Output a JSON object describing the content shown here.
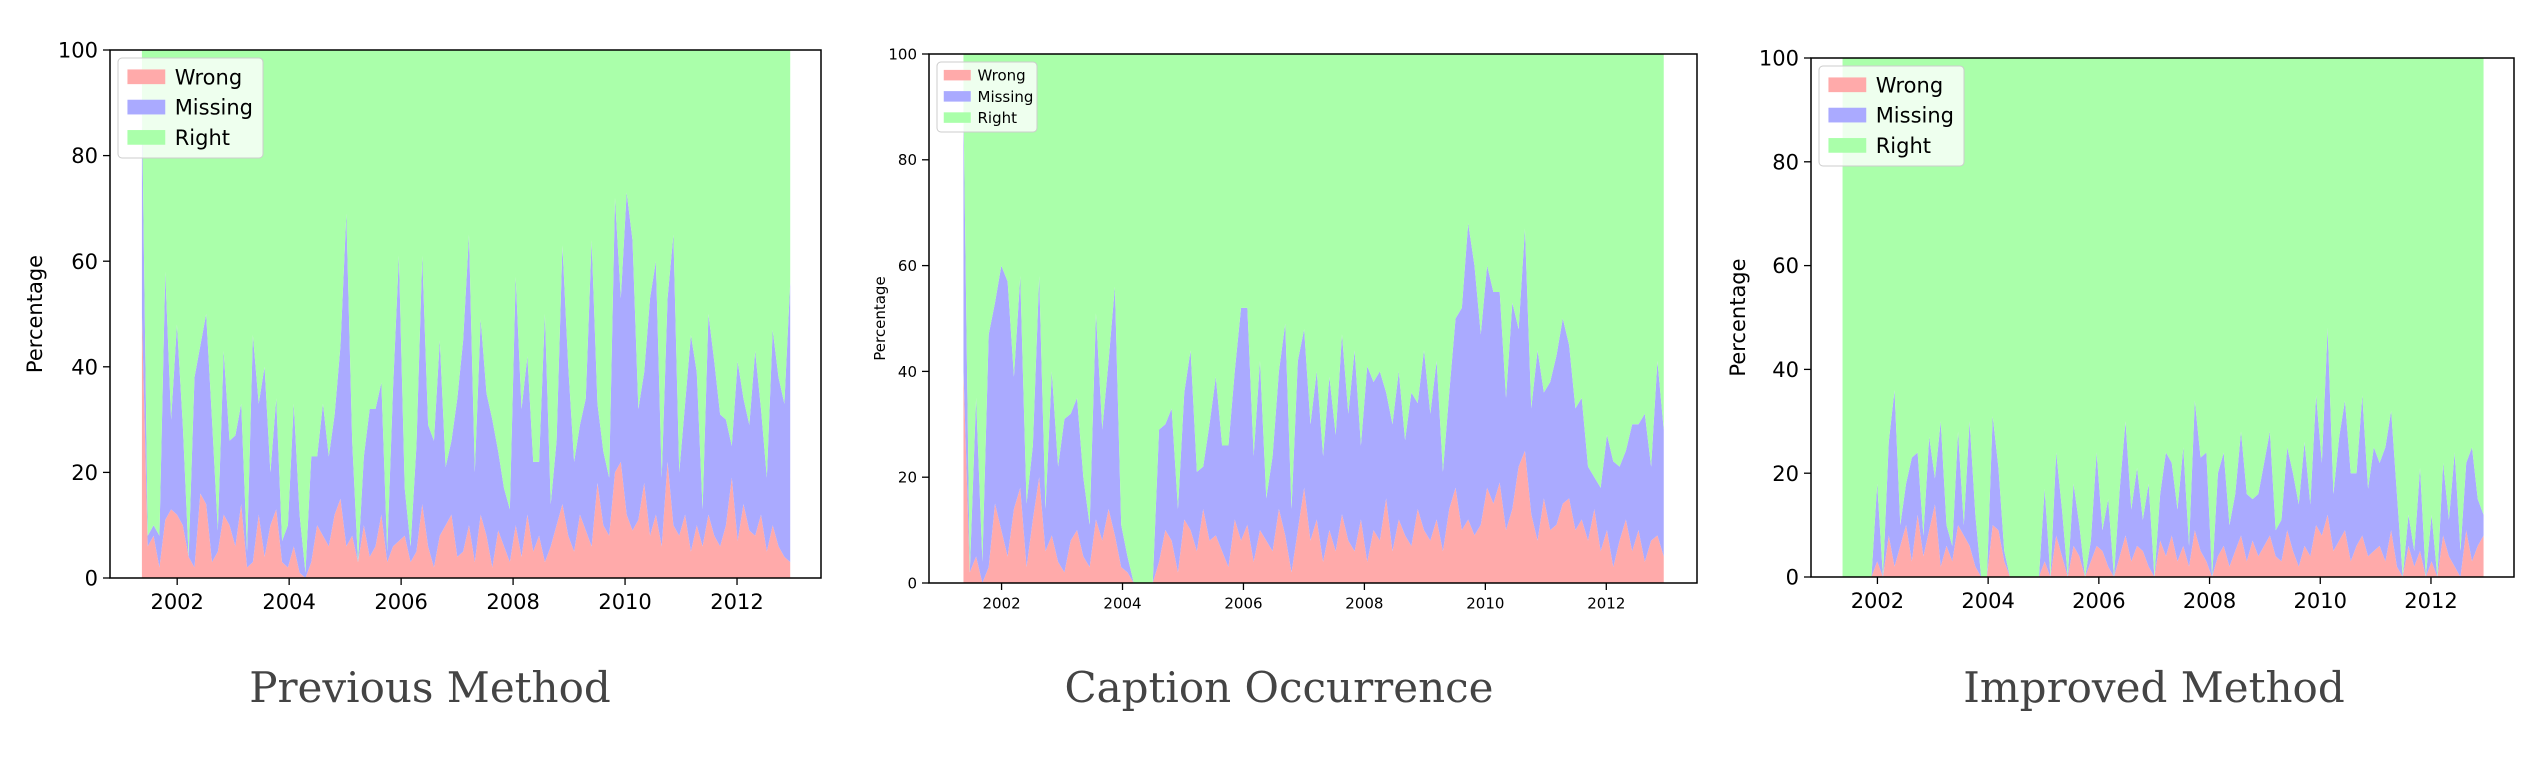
{
  "colors": {
    "wrong": "#ffaaaa",
    "missing": "#aaaaff",
    "right": "#aaffaa"
  },
  "chart_data": [
    {
      "type": "area",
      "stacked": true,
      "caption": "Previous Method",
      "ylabel": "Percentage",
      "xlim": [
        2000.8,
        2013.5
      ],
      "ylim": [
        0,
        100
      ],
      "xticks": [
        2002,
        2004,
        2006,
        2008,
        2010,
        2012
      ],
      "yticks": [
        0,
        20,
        40,
        60,
        80,
        100
      ],
      "legend": {
        "placement": "top-left",
        "entries": [
          "Wrong",
          "Missing",
          "Right"
        ]
      },
      "x_range": [
        2001.37,
        2012.95
      ],
      "series": [
        {
          "name": "Wrong",
          "key": "wrong",
          "values": [
            50,
            6,
            8,
            2,
            11,
            13,
            12,
            10,
            4,
            2,
            16,
            14,
            3,
            5,
            12,
            10,
            6,
            14,
            2,
            3,
            12,
            4,
            10,
            13,
            3,
            2,
            6,
            1,
            0,
            3,
            10,
            8,
            6,
            12,
            15,
            6,
            8,
            3,
            10,
            4,
            6,
            12,
            3,
            6,
            7,
            8,
            3,
            5,
            14,
            6,
            2,
            8,
            10,
            12,
            4,
            5,
            10,
            3,
            12,
            8,
            2,
            9,
            6,
            3,
            10,
            4,
            12,
            5,
            8,
            3,
            6,
            10,
            14,
            8,
            5,
            12,
            9,
            6,
            18,
            10,
            8,
            20,
            22,
            12,
            9,
            11,
            18,
            8,
            12,
            6,
            22,
            10,
            8,
            12,
            5,
            10,
            6,
            12,
            8,
            6,
            10,
            19,
            7,
            14,
            9,
            8,
            12,
            5,
            10,
            6,
            4,
            3
          ]
        },
        {
          "name": "Missing",
          "key": "missing",
          "values": [
            40,
            2,
            2,
            6,
            47,
            17,
            36,
            19,
            0,
            36,
            28,
            36,
            27,
            4,
            31,
            16,
            21,
            19,
            3,
            43,
            21,
            36,
            10,
            21,
            4,
            8,
            27,
            11,
            1,
            20,
            13,
            25,
            17,
            19,
            29,
            63,
            18,
            0,
            13,
            28,
            26,
            25,
            2,
            30,
            54,
            9,
            3,
            20,
            47,
            23,
            24,
            37,
            11,
            14,
            30,
            40,
            55,
            17,
            37,
            27,
            28,
            15,
            11,
            10,
            47,
            28,
            30,
            17,
            14,
            47,
            8,
            16,
            49,
            32,
            17,
            17,
            25,
            58,
            15,
            14,
            11,
            52,
            31,
            61,
            55,
            21,
            21,
            45,
            48,
            13,
            31,
            55,
            12,
            21,
            41,
            29,
            7,
            38,
            33,
            25,
            20,
            6,
            34,
            20,
            20,
            35,
            20,
            14,
            37,
            32,
            29,
            53
          ]
        },
        {
          "name": "Right",
          "key": "right",
          "values": [
            10,
            92,
            90,
            92,
            42,
            70,
            52,
            71,
            96,
            62,
            56,
            50,
            70,
            91,
            57,
            74,
            73,
            67,
            95,
            54,
            67,
            60,
            80,
            66,
            93,
            90,
            67,
            88,
            99,
            77,
            77,
            67,
            77,
            69,
            56,
            31,
            74,
            97,
            77,
            68,
            68,
            63,
            95,
            64,
            39,
            83,
            94,
            75,
            39,
            71,
            74,
            55,
            79,
            74,
            66,
            55,
            35,
            80,
            51,
            65,
            70,
            76,
            83,
            87,
            43,
            68,
            58,
            78,
            78,
            50,
            86,
            74,
            37,
            60,
            78,
            71,
            66,
            36,
            67,
            76,
            81,
            28,
            47,
            27,
            36,
            68,
            61,
            47,
            40,
            81,
            47,
            35,
            80,
            67,
            54,
            61,
            87,
            50,
            59,
            69,
            70,
            75,
            59,
            66,
            71,
            57,
            68,
            81,
            53,
            62,
            67,
            44
          ]
        }
      ]
    },
    {
      "type": "area",
      "stacked": true,
      "caption": "Caption Occurrence",
      "ylabel": "Percentage",
      "xlim": [
        2000.8,
        2013.5
      ],
      "ylim": [
        0,
        100
      ],
      "xticks": [
        2002,
        2004,
        2006,
        2008,
        2010,
        2012
      ],
      "yticks": [
        0,
        20,
        40,
        60,
        80,
        100
      ],
      "legend": {
        "placement": "top-left",
        "entries": [
          "Wrong",
          "Missing",
          "Right"
        ]
      },
      "x_range": [
        2001.37,
        2012.95
      ],
      "series": [
        {
          "name": "Wrong",
          "key": "wrong",
          "values": [
            40,
            2,
            5,
            0,
            3,
            15,
            10,
            5,
            14,
            18,
            3,
            12,
            20,
            6,
            9,
            4,
            2,
            8,
            10,
            5,
            3,
            12,
            8,
            14,
            9,
            3,
            2,
            0,
            0,
            0,
            0,
            4,
            10,
            8,
            2,
            12,
            10,
            6,
            14,
            8,
            9,
            6,
            3,
            12,
            8,
            11,
            4,
            10,
            8,
            6,
            14,
            9,
            2,
            10,
            18,
            8,
            12,
            4,
            10,
            6,
            13,
            8,
            6,
            12,
            4,
            10,
            8,
            16,
            6,
            12,
            9,
            7,
            14,
            10,
            8,
            12,
            6,
            14,
            18,
            10,
            12,
            9,
            11,
            18,
            15,
            19,
            10,
            14,
            22,
            25,
            13,
            8,
            16,
            10,
            11,
            15,
            16,
            10,
            12,
            8,
            14,
            6,
            10,
            3,
            8,
            12,
            6,
            10,
            4,
            8,
            9,
            5
          ]
        },
        {
          "name": "Missing",
          "key": "missing",
          "values": [
            50,
            0,
            30,
            4,
            44,
            38,
            50,
            52,
            25,
            40,
            12,
            14,
            38,
            8,
            31,
            18,
            29,
            24,
            25,
            15,
            8,
            39,
            21,
            28,
            47,
            8,
            3,
            0,
            0,
            0,
            0,
            25,
            20,
            25,
            12,
            24,
            34,
            15,
            8,
            22,
            30,
            20,
            23,
            28,
            44,
            41,
            20,
            32,
            8,
            18,
            26,
            40,
            12,
            32,
            30,
            22,
            28,
            20,
            29,
            22,
            34,
            24,
            38,
            14,
            37,
            28,
            32,
            20,
            24,
            28,
            18,
            29,
            20,
            34,
            24,
            30,
            15,
            22,
            32,
            42,
            56,
            51,
            36,
            42,
            40,
            36,
            25,
            39,
            26,
            42,
            20,
            36,
            20,
            28,
            32,
            35,
            29,
            23,
            23,
            14,
            6,
            12,
            18,
            20,
            14,
            13,
            24,
            20,
            28,
            14,
            33,
            24
          ]
        },
        {
          "name": "Right",
          "key": "right",
          "values": [
            10,
            98,
            65,
            96,
            53,
            47,
            40,
            43,
            61,
            42,
            85,
            74,
            42,
            86,
            60,
            78,
            69,
            68,
            65,
            80,
            89,
            49,
            71,
            58,
            44,
            89,
            95,
            100,
            100,
            100,
            100,
            71,
            70,
            67,
            86,
            64,
            56,
            79,
            78,
            70,
            61,
            74,
            74,
            60,
            48,
            48,
            76,
            58,
            84,
            76,
            60,
            51,
            86,
            58,
            52,
            70,
            60,
            76,
            61,
            72,
            53,
            68,
            56,
            74,
            59,
            62,
            60,
            64,
            70,
            60,
            73,
            64,
            66,
            56,
            68,
            58,
            79,
            64,
            50,
            48,
            32,
            40,
            53,
            40,
            45,
            45,
            65,
            47,
            52,
            33,
            67,
            56,
            64,
            62,
            57,
            50,
            55,
            67,
            65,
            78,
            80,
            82,
            72,
            77,
            78,
            75,
            70,
            70,
            68,
            78,
            58,
            71
          ]
        }
      ]
    },
    {
      "type": "area",
      "stacked": true,
      "caption": "Improved Method",
      "ylabel": "Percentage",
      "xlim": [
        2000.8,
        2013.5
      ],
      "ylim": [
        0,
        100
      ],
      "xticks": [
        2002,
        2004,
        2006,
        2008,
        2010,
        2012
      ],
      "yticks": [
        0,
        20,
        40,
        60,
        80,
        100
      ],
      "legend": {
        "placement": "top-left",
        "entries": [
          "Wrong",
          "Missing",
          "Right"
        ]
      },
      "x_range": [
        2001.37,
        2012.95
      ],
      "series": [
        {
          "name": "Wrong",
          "key": "wrong",
          "values": [
            0,
            0,
            0,
            0,
            0,
            0,
            3,
            0,
            8,
            2,
            6,
            10,
            3,
            12,
            4,
            9,
            14,
            2,
            6,
            3,
            10,
            8,
            6,
            2,
            0,
            0,
            10,
            9,
            3,
            0,
            0,
            0,
            0,
            0,
            0,
            3,
            0,
            8,
            4,
            0,
            6,
            4,
            0,
            3,
            6,
            5,
            2,
            0,
            4,
            8,
            3,
            6,
            5,
            2,
            0,
            7,
            4,
            8,
            3,
            6,
            2,
            9,
            5,
            3,
            0,
            4,
            6,
            2,
            5,
            8,
            3,
            7,
            4,
            6,
            8,
            4,
            3,
            9,
            5,
            2,
            6,
            4,
            10,
            8,
            12,
            5,
            7,
            9,
            3,
            6,
            8,
            4,
            5,
            6,
            3,
            9,
            2,
            0,
            6,
            2,
            5,
            0,
            3,
            0,
            8,
            4,
            2,
            0,
            9,
            3,
            6,
            8
          ]
        },
        {
          "name": "Missing",
          "key": "missing",
          "values": [
            0,
            0,
            0,
            0,
            0,
            0,
            15,
            0,
            18,
            34,
            4,
            8,
            20,
            12,
            4,
            18,
            5,
            28,
            4,
            3,
            18,
            2,
            24,
            10,
            0,
            0,
            21,
            12,
            2,
            0,
            0,
            0,
            0,
            0,
            0,
            14,
            0,
            16,
            9,
            0,
            12,
            6,
            0,
            4,
            18,
            4,
            13,
            0,
            13,
            22,
            10,
            15,
            6,
            16,
            0,
            9,
            20,
            14,
            10,
            19,
            4,
            25,
            18,
            21,
            0,
            16,
            18,
            8,
            11,
            20,
            13,
            8,
            12,
            16,
            20,
            5,
            8,
            16,
            15,
            12,
            20,
            10,
            25,
            14,
            36,
            11,
            20,
            25,
            17,
            14,
            27,
            13,
            20,
            16,
            22,
            23,
            14,
            0,
            6,
            3,
            16,
            0,
            9,
            0,
            14,
            7,
            22,
            5,
            13,
            22,
            9,
            4
          ]
        },
        {
          "name": "Right",
          "key": "right",
          "values": [
            100,
            100,
            100,
            100,
            100,
            100,
            82,
            100,
            74,
            64,
            90,
            82,
            77,
            76,
            92,
            73,
            81,
            70,
            90,
            94,
            72,
            90,
            70,
            88,
            100,
            100,
            69,
            79,
            95,
            100,
            100,
            100,
            100,
            100,
            100,
            83,
            100,
            76,
            87,
            100,
            82,
            90,
            100,
            93,
            76,
            91,
            85,
            100,
            83,
            70,
            87,
            79,
            89,
            82,
            100,
            84,
            76,
            78,
            87,
            75,
            94,
            66,
            77,
            76,
            100,
            80,
            76,
            90,
            84,
            72,
            84,
            85,
            84,
            78,
            72,
            91,
            89,
            75,
            80,
            86,
            74,
            86,
            65,
            78,
            52,
            84,
            73,
            66,
            80,
            80,
            65,
            83,
            75,
            78,
            75,
            68,
            84,
            100,
            88,
            95,
            79,
            100,
            88,
            100,
            78,
            89,
            76,
            95,
            78,
            75,
            85,
            88
          ]
        }
      ]
    }
  ]
}
